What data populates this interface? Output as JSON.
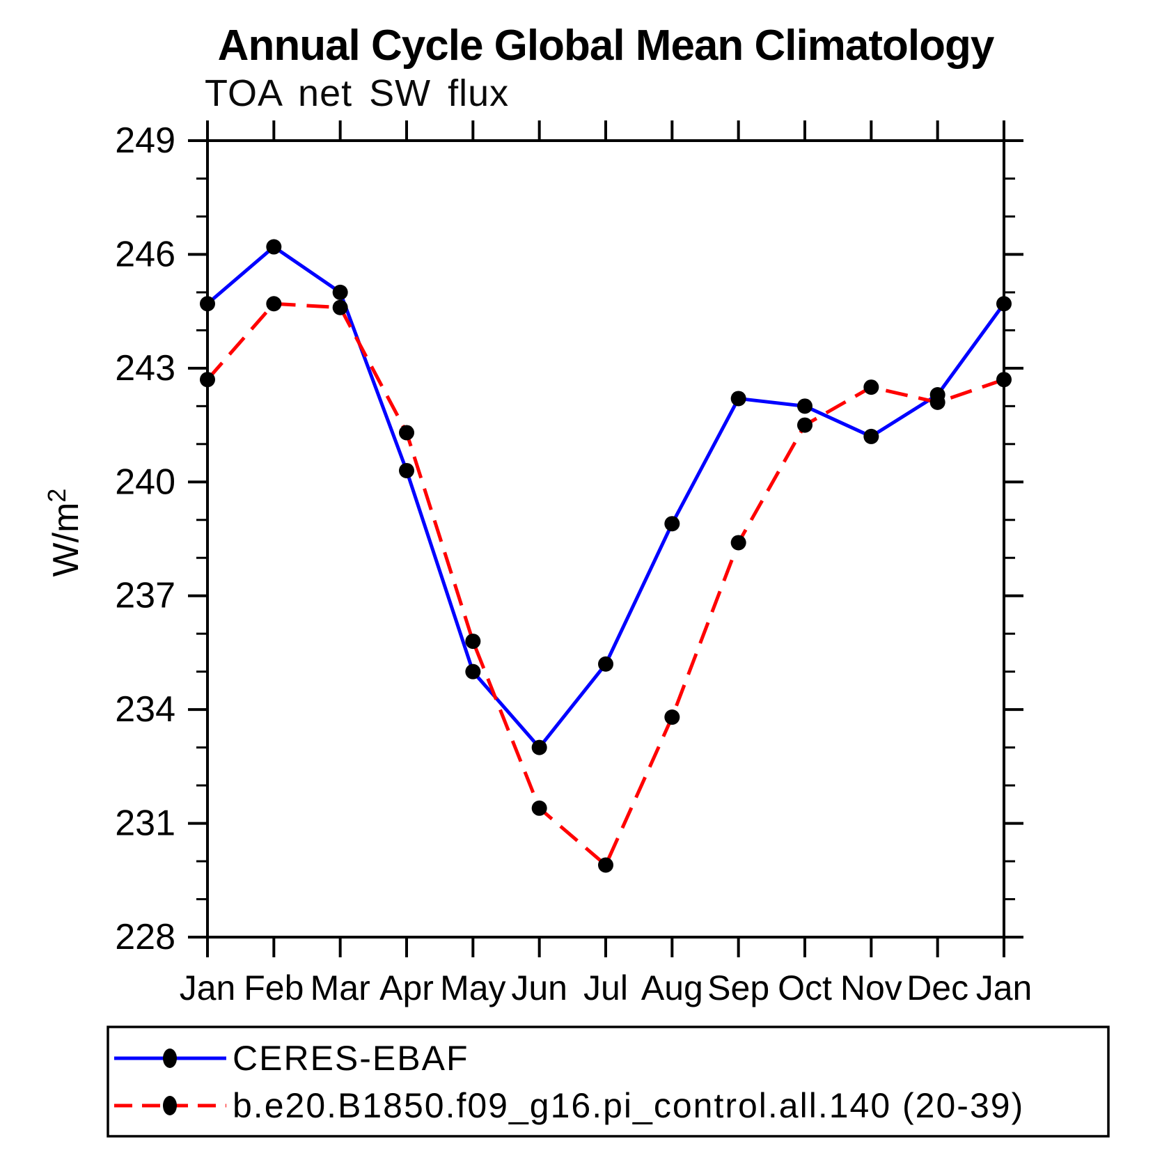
{
  "chart_data": {
    "type": "line",
    "title": "Annual Cycle Global Mean Climatology",
    "subtitle": "TOA net SW flux",
    "ylabel": "W/m²",
    "xlabel": "",
    "categories": [
      "Jan",
      "Feb",
      "Mar",
      "Apr",
      "May",
      "Jun",
      "Jul",
      "Aug",
      "Sep",
      "Oct",
      "Nov",
      "Dec",
      "Jan"
    ],
    "series": [
      {
        "name": "CERES-EBAF",
        "color": "#0000ff",
        "line_style": "solid",
        "marker": "filled-circle",
        "marker_color": "#000000",
        "values": [
          244.7,
          246.2,
          245.0,
          240.3,
          235.0,
          233.0,
          235.2,
          238.9,
          242.2,
          242.0,
          241.2,
          242.3,
          244.7
        ]
      },
      {
        "name": "b.e20.B1850.f09_g16.pi_control.all.140 (20-39)",
        "color": "#ff0000",
        "line_style": "dashed",
        "marker": "filled-circle",
        "marker_color": "#000000",
        "values": [
          242.7,
          244.7,
          244.6,
          241.3,
          235.8,
          231.4,
          229.9,
          233.8,
          238.4,
          241.5,
          242.5,
          242.1,
          242.7
        ]
      }
    ],
    "ylim": [
      228,
      249
    ],
    "yticks": [
      228,
      231,
      234,
      237,
      240,
      243,
      246,
      249
    ],
    "yminor_step": 1,
    "grid": false,
    "legend_position": "bottom-box",
    "axis_color": "#000000",
    "background_color": "#ffffff"
  }
}
